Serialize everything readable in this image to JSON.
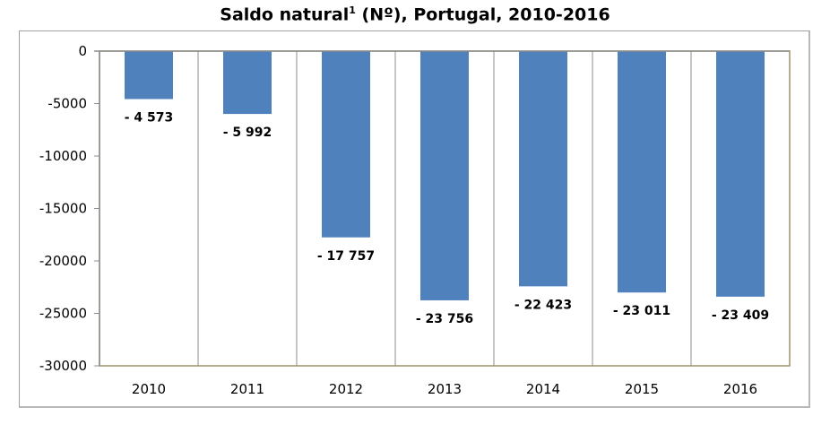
{
  "chart_data": {
    "type": "bar",
    "title": "Saldo natural",
    "title_sup": "1",
    "title_suffix": " (Nº), Portugal, 2010-2016",
    "categories": [
      "2010",
      "2011",
      "2012",
      "2013",
      "2014",
      "2015",
      "2016"
    ],
    "values": [
      -4573,
      -5992,
      -17757,
      -23756,
      -22423,
      -23011,
      -23409
    ],
    "data_labels": [
      "- 4 573",
      "- 5 992",
      "- 17 757",
      "- 23 756",
      "- 22 423",
      "- 23 011",
      "- 23 409"
    ],
    "yticks": [
      0,
      -5000,
      -10000,
      -15000,
      -20000,
      -25000,
      -30000
    ],
    "ylim": [
      -30000,
      0
    ],
    "xlabel": "",
    "ylabel": "",
    "bar_color": "#4f81bd",
    "legend": "none"
  }
}
